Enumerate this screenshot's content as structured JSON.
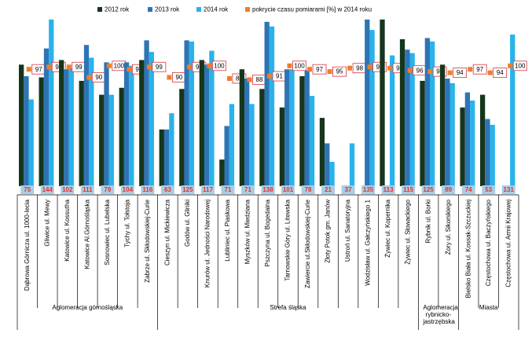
{
  "chart_data": {
    "type": "bar",
    "groups": [
      {
        "label": "Aglomeracja górnośląska",
        "categories": [
          "Dąbrowa Górnicza ul. 1000-lecia",
          "Gliwice ul. Mewy",
          "Katowice ul. Kossutha",
          "Katowice Al.Górnośląska",
          "Sosnowiec ul. Lubelska",
          "Tychy ul. Tołstoja",
          "Zabrze ul. Skłodowskiej-Curie"
        ]
      },
      {
        "label": "Strefa śląska",
        "categories": [
          "Cieszyn ul. Mickiewicza",
          "Godów ul. Gliniki",
          "Knurów ul. Jedności Narodowej",
          "Lubliniec ul. Piaskowa",
          "Myszków ul. Miedziana",
          "Pszczyna ul. Bogedaina",
          "Tarnowskie Góry ul. Litewska",
          "Zawiercie ul.Skłodowskiej-Curie",
          "Złoty Potok gm. Janów",
          "Ustroń ul. Sanatoryjna",
          "Wodzisław ul. Gałczyńskiego 1",
          "Żywiec ul. Kopernika",
          "Żywiec ul. Słowackiego"
        ]
      },
      {
        "label": "Aglomeracja rybnicko-jastrzębska",
        "categories": [
          "Rybnik ul. Borki",
          "Żory ul. Sikorskiego"
        ]
      },
      {
        "label": "Miasta",
        "categories": [
          "Bielsko Biała ul. Kossak-Szczuckiej",
          "Częstochowa ul. Baczyńskiego",
          "Częstochowa ul. Armii Krajowej"
        ]
      }
    ],
    "series": [
      {
        "name": "2012 rok",
        "color": "#16361c",
        "values": [
          105,
          94,
          109,
          91,
          79,
          85,
          109,
          49,
          84,
          109,
          23,
          101,
          84,
          68,
          95,
          59,
          null,
          null,
          144,
          127,
          91,
          105,
          68,
          79,
          null
        ]
      },
      {
        "name": "2013 rok",
        "color": "#2e74b5",
        "values": [
          95,
          119,
          101,
          122,
          107,
          107,
          126,
          49,
          126,
          105,
          52,
          93,
          142,
          101,
          100,
          37,
          null,
          144,
          null,
          118,
          128,
          93,
          81,
          58,
          null
        ]
      },
      {
        "name": "2014 rok",
        "color": "#29b3ea",
        "values": [
          75,
          144,
          102,
          111,
          79,
          104,
          116,
          63,
          125,
          117,
          71,
          71,
          138,
          101,
          78,
          21,
          37,
          135,
          113,
          115,
          125,
          89,
          74,
          53,
          131
        ]
      },
      {
        "name": "pokrycie czasu pomiarami [%] w 2014 roku",
        "color": "#ef7d2c",
        "axis": "y2",
        "values": [
          97,
          99,
          99,
          90,
          100,
          97,
          99,
          90,
          99,
          100,
          89,
          88,
          91,
          100,
          97,
          95,
          98,
          99,
          98,
          96,
          95,
          94,
          97,
          94,
          100
        ]
      }
    ],
    "ylim": [
      0,
      150
    ],
    "y2lim": [
      -4,
      146
    ]
  }
}
